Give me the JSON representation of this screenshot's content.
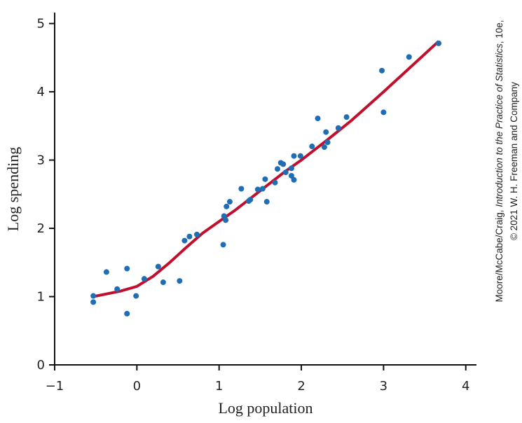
{
  "chart_data": {
    "type": "scatter",
    "xlabel": "Log population",
    "ylabel": "Log spending",
    "xlim": [
      -1,
      4.13
    ],
    "ylim": [
      0,
      5.16
    ],
    "xticks": [
      {
        "value": -1,
        "label": "−1"
      },
      0,
      1,
      2,
      3,
      4
    ],
    "yticks": [
      0,
      1,
      2,
      3,
      4,
      5
    ],
    "points": {
      "color": "#1f6db5",
      "x": [
        -0.53,
        -0.53,
        -0.37,
        -0.24,
        -0.12,
        -0.12,
        -0.01,
        0.09,
        0.26,
        0.32,
        0.52,
        0.58,
        0.64,
        0.73,
        1.05,
        1.06,
        1.08,
        1.09,
        1.13,
        1.27,
        1.36,
        1.38,
        1.47,
        1.53,
        1.56,
        1.58,
        1.68,
        1.71,
        1.75,
        1.78,
        1.81,
        1.88,
        1.88,
        1.91,
        1.91,
        1.99,
        2.13,
        2.2,
        2.28,
        2.3,
        2.32,
        2.45,
        2.55,
        2.98,
        3.0,
        3.31,
        3.67
      ],
      "y": [
        1.01,
        0.92,
        1.36,
        1.11,
        1.41,
        0.75,
        1.01,
        1.26,
        1.44,
        1.21,
        1.23,
        1.82,
        1.88,
        1.91,
        1.76,
        2.18,
        2.12,
        2.32,
        2.39,
        2.58,
        2.4,
        2.42,
        2.57,
        2.58,
        2.72,
        2.39,
        2.67,
        2.87,
        2.96,
        2.94,
        2.82,
        2.88,
        2.77,
        2.71,
        3.06,
        3.06,
        3.2,
        3.61,
        3.19,
        3.41,
        3.26,
        3.47,
        3.63,
        4.31,
        3.7,
        4.51,
        4.71
      ]
    },
    "curve": {
      "color": "#c0102e",
      "x": [
        -0.53,
        -0.2,
        0,
        0.2,
        0.4,
        0.6,
        0.8,
        1.0,
        1.2,
        1.5,
        1.8,
        2.0,
        2.3,
        2.6,
        3.0,
        3.3,
        3.67
      ],
      "y": [
        1.0,
        1.08,
        1.15,
        1.3,
        1.5,
        1.72,
        1.93,
        2.1,
        2.27,
        2.55,
        2.83,
        3.0,
        3.28,
        3.57,
        4.0,
        4.33,
        4.74
      ]
    }
  },
  "credit": {
    "line1": [
      "Moore/McCabe/Craig, ",
      "Introduction to the Practice of Statistics",
      ", 10e,"
    ],
    "line2": "© 2021  W. H. Freeman and Company"
  }
}
